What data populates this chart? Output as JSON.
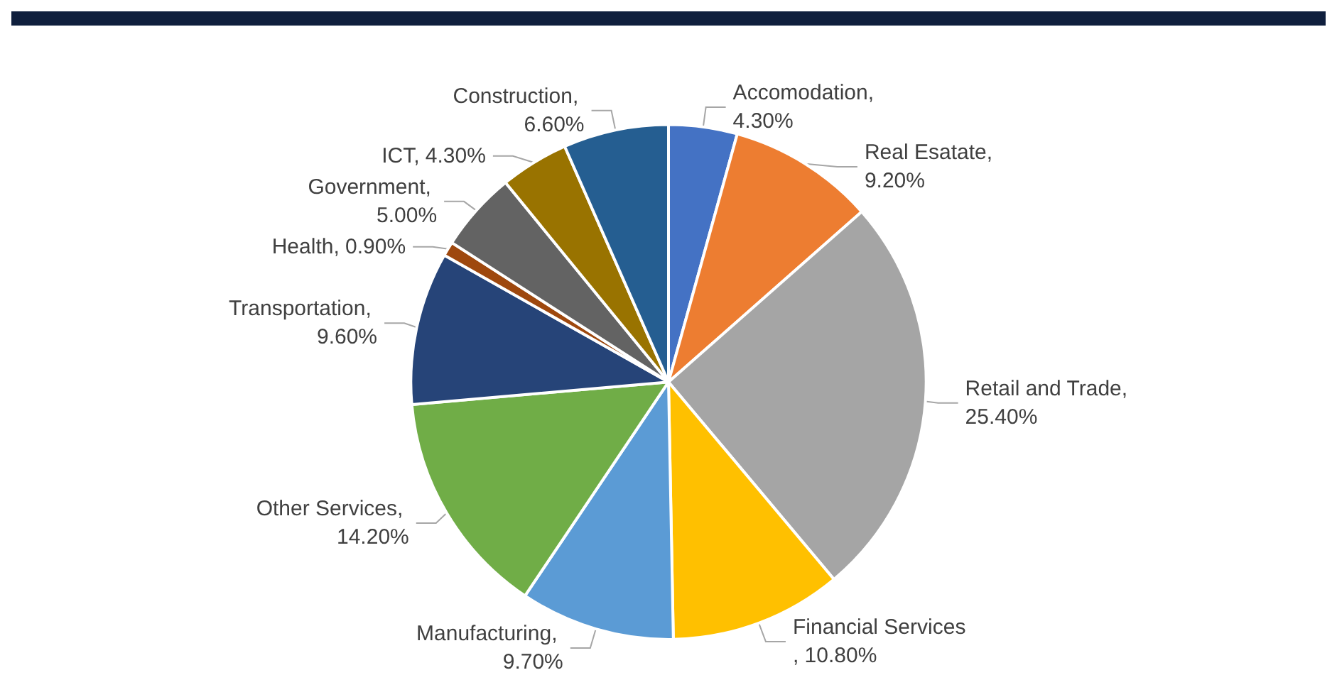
{
  "chart_data": {
    "type": "pie",
    "categories": [
      "Accomodation",
      "Real Esatate",
      "Retail and Trade",
      "Financial Services",
      "Manufacturing",
      "Other Services",
      "Transportation",
      "Health",
      "Government",
      "ICT",
      "Construction"
    ],
    "values": [
      4.3,
      9.2,
      25.4,
      10.8,
      9.7,
      14.2,
      9.6,
      0.9,
      5.0,
      4.3,
      6.6
    ],
    "value_labels": [
      ", 4.30%",
      ", 9.20%",
      ", 25.40%",
      ", 10.80%",
      ", 9.70%",
      ", 14.20%",
      ", 9.60%",
      ", 0.90%",
      ", 5.00%",
      ", 4.30%",
      ", 6.60%"
    ],
    "colors": [
      "#4472c4",
      "#ed7d31",
      "#a5a5a5",
      "#ffc000",
      "#5b9bd5",
      "#70ad47",
      "#264478",
      "#9e480e",
      "#636363",
      "#997300",
      "#255e91"
    ],
    "legend": false
  }
}
